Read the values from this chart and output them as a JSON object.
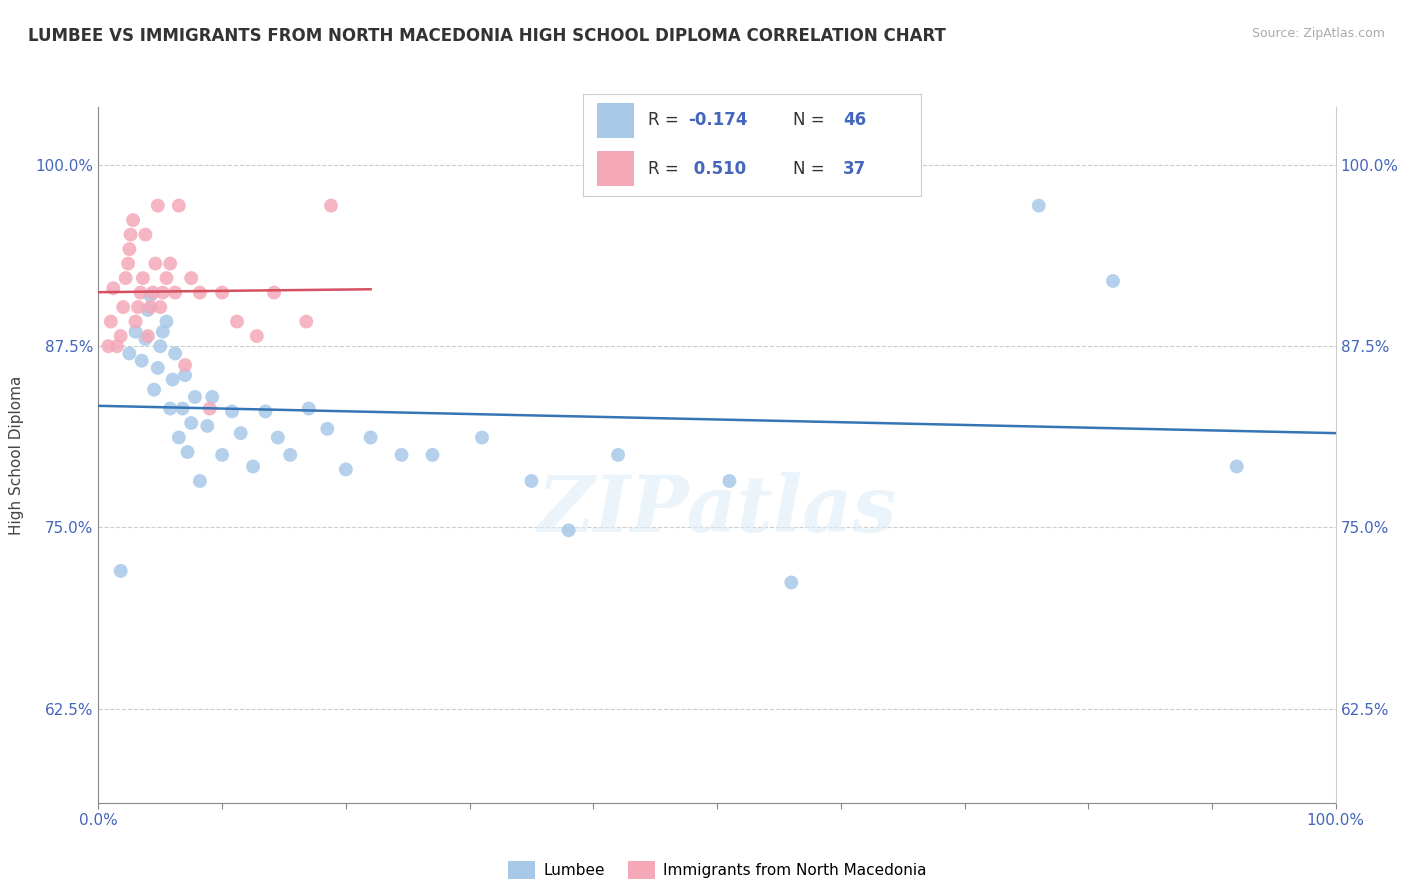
{
  "title": "LUMBEE VS IMMIGRANTS FROM NORTH MACEDONIA HIGH SCHOOL DIPLOMA CORRELATION CHART",
  "source": "Source: ZipAtlas.com",
  "ylabel": "High School Diploma",
  "xlim": [
    0.0,
    1.0
  ],
  "ylim": [
    0.56,
    1.04
  ],
  "yticks": [
    0.625,
    0.75,
    0.875,
    1.0
  ],
  "ytick_labels": [
    "62.5%",
    "75.0%",
    "87.5%",
    "100.0%"
  ],
  "xtick_positions": [
    0.0,
    0.1,
    0.2,
    0.3,
    0.4,
    0.5,
    0.6,
    0.7,
    0.8,
    0.9,
    1.0
  ],
  "xtick_labels_show": {
    "0.0": "0.0%",
    "1.0": "100.0%"
  },
  "blue_color": "#a8c8e8",
  "pink_color": "#f4a8b8",
  "blue_line_color": "#3575b5",
  "pink_line_color": "#d45060",
  "watermark": "ZIPatlas",
  "lumbee_x": [
    0.018,
    0.025,
    0.03,
    0.035,
    0.038,
    0.04,
    0.042,
    0.045,
    0.048,
    0.05,
    0.052,
    0.055,
    0.058,
    0.06,
    0.062,
    0.065,
    0.068,
    0.07,
    0.072,
    0.075,
    0.078,
    0.082,
    0.088,
    0.092,
    0.1,
    0.108,
    0.115,
    0.125,
    0.135,
    0.145,
    0.155,
    0.17,
    0.185,
    0.2,
    0.22,
    0.245,
    0.27,
    0.31,
    0.35,
    0.38,
    0.42,
    0.51,
    0.56,
    0.76,
    0.82,
    0.92
  ],
  "lumbee_y": [
    0.72,
    0.87,
    0.885,
    0.865,
    0.88,
    0.9,
    0.91,
    0.845,
    0.86,
    0.875,
    0.885,
    0.892,
    0.832,
    0.852,
    0.87,
    0.812,
    0.832,
    0.855,
    0.802,
    0.822,
    0.84,
    0.782,
    0.82,
    0.84,
    0.8,
    0.83,
    0.815,
    0.792,
    0.83,
    0.812,
    0.8,
    0.832,
    0.818,
    0.79,
    0.812,
    0.8,
    0.8,
    0.812,
    0.782,
    0.748,
    0.8,
    0.782,
    0.712,
    0.972,
    0.92,
    0.792
  ],
  "macedonia_x": [
    0.008,
    0.01,
    0.012,
    0.015,
    0.018,
    0.02,
    0.022,
    0.024,
    0.025,
    0.026,
    0.028,
    0.03,
    0.032,
    0.034,
    0.036,
    0.038,
    0.04,
    0.042,
    0.044,
    0.046,
    0.048,
    0.05,
    0.052,
    0.055,
    0.058,
    0.062,
    0.065,
    0.07,
    0.075,
    0.082,
    0.09,
    0.1,
    0.112,
    0.128,
    0.142,
    0.168,
    0.188
  ],
  "macedonia_y": [
    0.875,
    0.892,
    0.915,
    0.875,
    0.882,
    0.902,
    0.922,
    0.932,
    0.942,
    0.952,
    0.962,
    0.892,
    0.902,
    0.912,
    0.922,
    0.952,
    0.882,
    0.902,
    0.912,
    0.932,
    0.972,
    0.902,
    0.912,
    0.922,
    0.932,
    0.912,
    0.972,
    0.862,
    0.922,
    0.912,
    0.832,
    0.912,
    0.892,
    0.882,
    0.912,
    0.892,
    0.972
  ]
}
